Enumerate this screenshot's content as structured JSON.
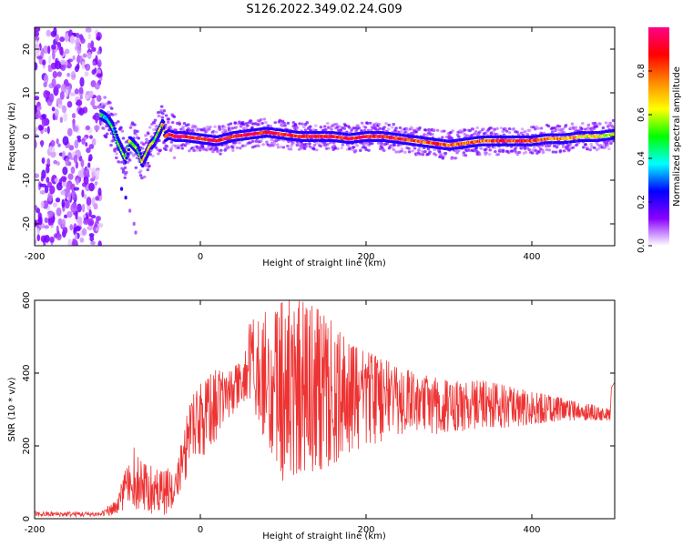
{
  "title": "S126.2022.349.02.24.G09",
  "chart_data": [
    {
      "type": "heatmap",
      "title": "",
      "xlabel": "Height of straight line (km)",
      "ylabel": "Frequency (Hz)",
      "xlim": [
        -200,
        500
      ],
      "ylim": [
        -25,
        25
      ],
      "xticks": [
        -200,
        0,
        200,
        400
      ],
      "yticks": [
        -20,
        -10,
        0,
        10,
        20
      ],
      "colorbar": {
        "label": "Normalized spectral amplitude",
        "range": [
          0,
          1
        ],
        "ticks": [
          0.0,
          0.2,
          0.4,
          0.6,
          0.8
        ],
        "colors": [
          "#ffffff",
          "#8800ff",
          "#0000ff",
          "#00ffff",
          "#00ff00",
          "#ffff00",
          "#ff8800",
          "#ff0000",
          "#ff0088"
        ]
      },
      "noise_region_x": [
        -200,
        -120
      ],
      "ridge": {
        "x": [
          -120,
          -112,
          -105,
          -100,
          -95,
          -90,
          -85,
          -80,
          -75,
          -70,
          -65,
          -60,
          -55,
          -50,
          -45,
          -42,
          -38,
          -30,
          -20,
          0,
          20,
          40,
          60,
          80,
          100,
          120,
          140,
          160,
          180,
          200,
          220,
          240,
          260,
          280,
          300,
          320,
          340,
          360,
          380,
          400,
          420,
          440,
          460,
          480,
          500
        ],
        "freq": [
          5,
          4,
          2,
          -1,
          -3,
          -5,
          -1,
          -2,
          -3,
          -6,
          -4,
          -2,
          -1,
          1,
          3,
          0,
          0.5,
          0,
          0,
          -0.5,
          -1,
          0,
          0.5,
          1,
          0.5,
          0,
          0,
          0,
          -0.5,
          0,
          0,
          -0.5,
          -1,
          -1.5,
          -2,
          -1.5,
          -1,
          -1,
          -1,
          -1,
          -0.5,
          -0.5,
          0,
          0,
          0.5
        ],
        "amp": [
          0.4,
          0.45,
          0.5,
          0.5,
          0.55,
          0.5,
          0.55,
          0.6,
          0.6,
          0.65,
          0.65,
          0.6,
          0.6,
          0.55,
          0.7,
          0.8,
          0.9,
          0.95,
          0.95,
          0.9,
          0.9,
          0.9,
          0.95,
          0.9,
          0.9,
          0.9,
          0.95,
          0.9,
          0.9,
          0.95,
          0.9,
          0.85,
          0.85,
          0.8,
          0.8,
          0.8,
          0.8,
          0.85,
          0.85,
          0.85,
          0.8,
          0.75,
          0.7,
          0.65,
          0.6
        ]
      }
    },
    {
      "type": "line",
      "title": "",
      "xlabel": "Height of straight line (km)",
      "ylabel": "SNR (10 * v/v)",
      "xlim": [
        -200,
        500
      ],
      "ylim": [
        0,
        600
      ],
      "xticks": [
        -200,
        0,
        200,
        400
      ],
      "yticks": [
        0,
        200,
        400,
        600
      ],
      "color": "#ee3333",
      "envelope": {
        "x": [
          -200,
          -120,
          -100,
          -90,
          -80,
          -70,
          -60,
          -50,
          -40,
          -30,
          -25,
          -20,
          -10,
          0,
          10,
          20,
          30,
          40,
          50,
          60,
          80,
          100,
          120,
          140,
          160,
          180,
          200,
          220,
          240,
          260,
          280,
          300,
          320,
          340,
          360,
          380,
          400,
          420,
          440,
          460,
          480,
          495
        ],
        "low": [
          5,
          5,
          10,
          30,
          20,
          30,
          10,
          20,
          5,
          30,
          60,
          100,
          140,
          160,
          190,
          220,
          260,
          290,
          320,
          330,
          200,
          100,
          130,
          130,
          150,
          180,
          200,
          210,
          230,
          240,
          230,
          240,
          240,
          250,
          250,
          250,
          260,
          265,
          270,
          270,
          270,
          270
        ],
        "high": [
          20,
          20,
          60,
          140,
          200,
          150,
          150,
          130,
          140,
          120,
          180,
          260,
          340,
          380,
          400,
          410,
          400,
          420,
          440,
          560,
          570,
          600,
          600,
          580,
          540,
          480,
          460,
          440,
          420,
          400,
          390,
          380,
          380,
          380,
          370,
          360,
          350,
          340,
          330,
          320,
          310,
          300
        ]
      }
    }
  ]
}
